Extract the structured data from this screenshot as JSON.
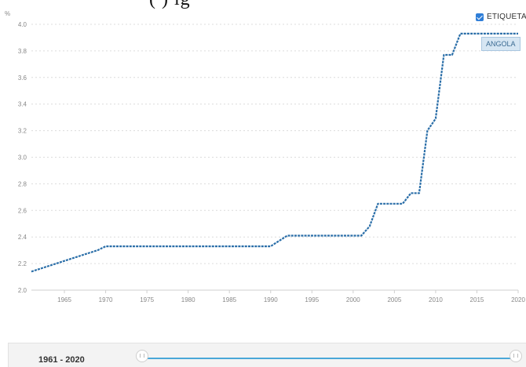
{
  "top_crop_text": "(                                    ) ig",
  "legend": {
    "label": "ETIQUETA",
    "checked": true
  },
  "series_tag": "ANGOLA",
  "range": {
    "label": "1961 - 2020"
  },
  "colors": {
    "line": "#2a6ea8",
    "grid": "#dcdcdc",
    "tick": "#888888",
    "accent": "#2f7ed8",
    "range_track": "#4aa7d8"
  },
  "chart_data": {
    "type": "line",
    "ylabel": "%",
    "xlabel": "",
    "xlim": [
      1961,
      2020
    ],
    "ylim": [
      2.0,
      4.0
    ],
    "yticks": [
      2.0,
      2.2,
      2.4,
      2.6,
      2.8,
      3.0,
      3.2,
      3.4,
      3.6,
      3.8,
      4.0
    ],
    "xticks": [
      1965,
      1970,
      1975,
      1980,
      1985,
      1990,
      1995,
      2000,
      2005,
      2010,
      2015,
      2020
    ],
    "grid": true,
    "series": [
      {
        "name": "ANGOLA",
        "x": [
          1961,
          1962,
          1963,
          1964,
          1965,
          1966,
          1967,
          1968,
          1969,
          1970,
          1975,
          1980,
          1985,
          1990,
          1991,
          1992,
          1995,
          2000,
          2001,
          2002,
          2003,
          2004,
          2005,
          2006,
          2007,
          2008,
          2009,
          2010,
          2011,
          2012,
          2013,
          2014,
          2015,
          2016,
          2017,
          2018,
          2019,
          2020
        ],
        "y": [
          2.14,
          2.16,
          2.18,
          2.2,
          2.22,
          2.24,
          2.26,
          2.28,
          2.3,
          2.33,
          2.33,
          2.33,
          2.33,
          2.33,
          2.37,
          2.41,
          2.41,
          2.41,
          2.41,
          2.48,
          2.65,
          2.65,
          2.65,
          2.65,
          2.73,
          2.73,
          3.2,
          3.29,
          3.77,
          3.77,
          3.93,
          3.93,
          3.93,
          3.93,
          3.93,
          3.93,
          3.93,
          3.93
        ]
      }
    ]
  }
}
